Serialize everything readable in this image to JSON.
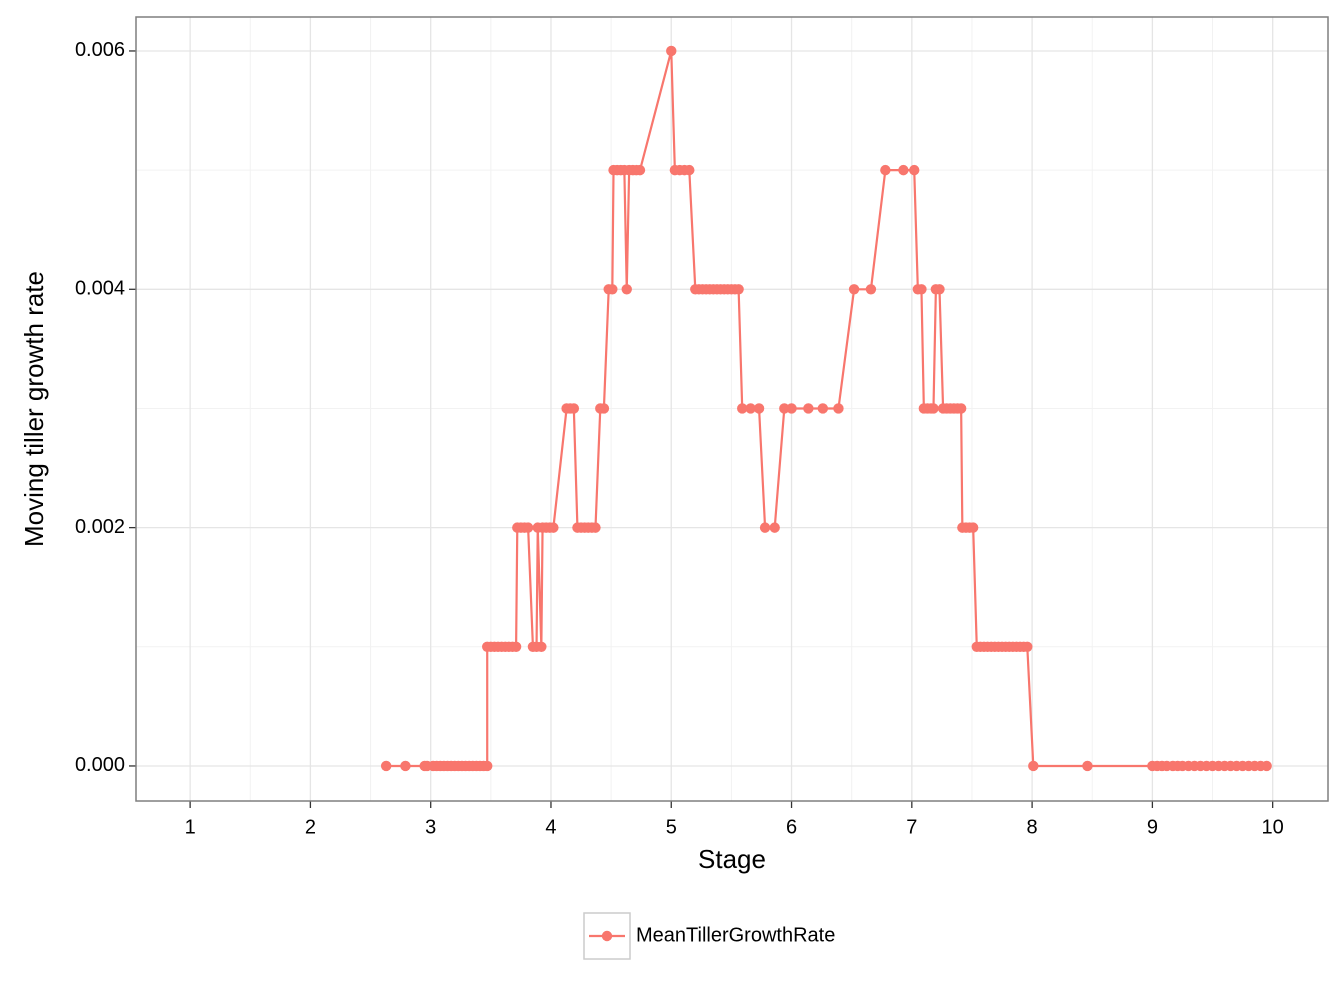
{
  "chart_data": {
    "type": "line",
    "xlabel": "Stage",
    "ylabel": "Moving tiller growth rate",
    "x": [
      2.63,
      2.79,
      2.95,
      2.97,
      3.02,
      3.05,
      3.08,
      3.11,
      3.14,
      3.17,
      3.2,
      3.23,
      3.26,
      3.29,
      3.32,
      3.35,
      3.38,
      3.41,
      3.44,
      3.47,
      3.47,
      3.5,
      3.53,
      3.56,
      3.59,
      3.62,
      3.65,
      3.68,
      3.71,
      3.72,
      3.75,
      3.78,
      3.81,
      3.85,
      3.88,
      3.89,
      3.92,
      3.93,
      3.96,
      3.99,
      4.02,
      4.13,
      4.16,
      4.19,
      4.22,
      4.25,
      4.28,
      4.31,
      4.34,
      4.37,
      4.41,
      4.44,
      4.48,
      4.51,
      4.52,
      4.55,
      4.58,
      4.61,
      4.63,
      4.65,
      4.68,
      4.71,
      4.74,
      5.0,
      5.03,
      5.07,
      5.11,
      5.15,
      5.2,
      5.23,
      5.26,
      5.29,
      5.32,
      5.35,
      5.38,
      5.41,
      5.44,
      5.47,
      5.5,
      5.53,
      5.56,
      5.59,
      5.66,
      5.73,
      5.78,
      5.86,
      5.94,
      6.0,
      6.14,
      6.26,
      6.39,
      6.52,
      6.66,
      6.78,
      6.93,
      7.02,
      7.05,
      7.08,
      7.1,
      7.13,
      7.16,
      7.18,
      7.2,
      7.23,
      7.26,
      7.29,
      7.32,
      7.35,
      7.38,
      7.41,
      7.42,
      7.45,
      7.48,
      7.51,
      7.54,
      7.57,
      7.6,
      7.63,
      7.66,
      7.69,
      7.72,
      7.75,
      7.78,
      7.81,
      7.84,
      7.87,
      7.9,
      7.93,
      7.96,
      8.01,
      8.46,
      9.0,
      9.04,
      9.08,
      9.12,
      9.17,
      9.21,
      9.25,
      9.3,
      9.35,
      9.4,
      9.45,
      9.5,
      9.55,
      9.6,
      9.65,
      9.7,
      9.75,
      9.8,
      9.85,
      9.9,
      9.95
    ],
    "series": [
      {
        "name": "MeanTillerGrowthRate",
        "color": "#f8766d",
        "values": [
          0,
          0,
          0,
          0,
          0,
          0,
          0,
          0,
          0,
          0,
          0,
          0,
          0,
          0,
          0,
          0,
          0,
          0,
          0,
          0,
          0.001,
          0.001,
          0.001,
          0.001,
          0.001,
          0.001,
          0.001,
          0.001,
          0.001,
          0.002,
          0.002,
          0.002,
          0.002,
          0.001,
          0.001,
          0.002,
          0.001,
          0.002,
          0.002,
          0.002,
          0.002,
          0.003,
          0.003,
          0.003,
          0.002,
          0.002,
          0.002,
          0.002,
          0.002,
          0.002,
          0.003,
          0.003,
          0.004,
          0.004,
          0.005,
          0.005,
          0.005,
          0.005,
          0.004,
          0.005,
          0.005,
          0.005,
          0.005,
          0.006,
          0.005,
          0.005,
          0.005,
          0.005,
          0.004,
          0.004,
          0.004,
          0.004,
          0.004,
          0.004,
          0.004,
          0.004,
          0.004,
          0.004,
          0.004,
          0.004,
          0.004,
          0.003,
          0.003,
          0.003,
          0.002,
          0.002,
          0.003,
          0.003,
          0.003,
          0.003,
          0.003,
          0.004,
          0.004,
          0.005,
          0.005,
          0.005,
          0.004,
          0.004,
          0.003,
          0.003,
          0.003,
          0.003,
          0.004,
          0.004,
          0.003,
          0.003,
          0.003,
          0.003,
          0.003,
          0.003,
          0.002,
          0.002,
          0.002,
          0.002,
          0.001,
          0.001,
          0.001,
          0.001,
          0.001,
          0.001,
          0.001,
          0.001,
          0.001,
          0.001,
          0.001,
          0.001,
          0.001,
          0.001,
          0.001,
          0,
          0,
          0,
          0,
          0,
          0,
          0,
          0,
          0,
          0,
          0,
          0,
          0,
          0,
          0,
          0,
          0,
          0,
          0,
          0,
          0,
          0,
          0
        ]
      }
    ],
    "xlim": [
      0.55,
      10.46
    ],
    "ylim": [
      -0.000294,
      0.006285
    ],
    "xticks": [
      1,
      2,
      3,
      4,
      5,
      6,
      7,
      8,
      9,
      10
    ],
    "yticks": [
      {
        "value": 0,
        "label": "0.000"
      },
      0.002,
      0.004,
      0.006
    ],
    "grid": true,
    "legend": "bottom"
  }
}
